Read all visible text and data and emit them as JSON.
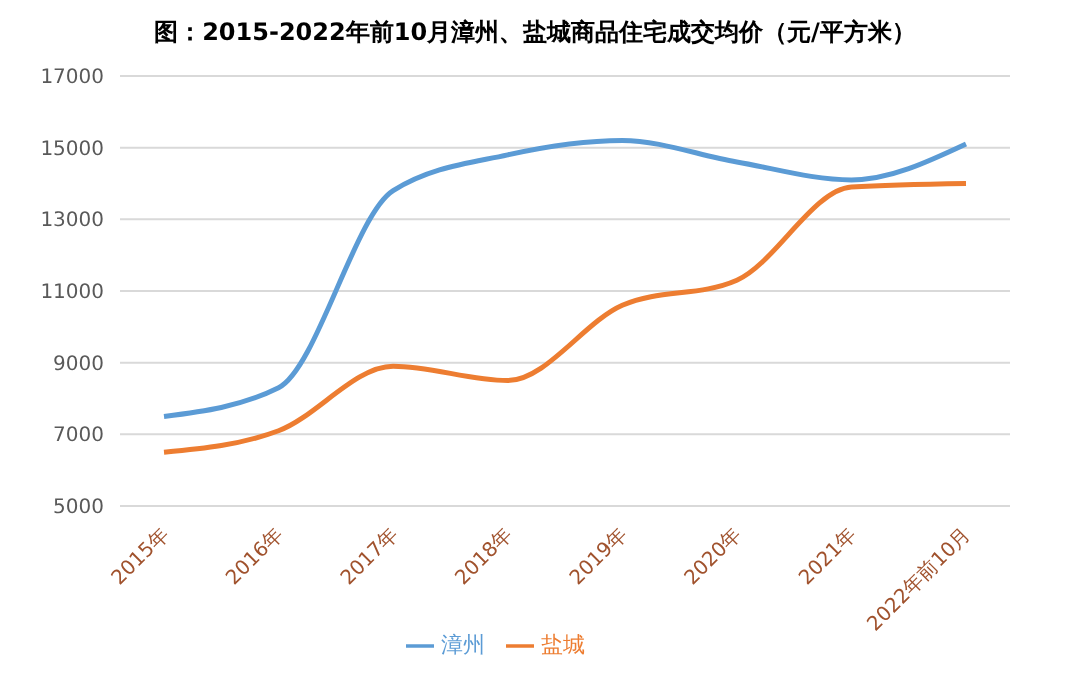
{
  "chart_data": {
    "type": "line",
    "title": "图：2015-2022年前10月漳州、盐城商品住宅成交均价（元/平方米）",
    "categories": [
      "2015年",
      "2016年",
      "2017年",
      "2018年",
      "2019年",
      "2020年",
      "2021年",
      "2022年前10月"
    ],
    "series": [
      {
        "name": "漳州",
        "color": "#5b9bd5",
        "values": [
          7500,
          8300,
          13800,
          14800,
          15200,
          14600,
          14100,
          15100
        ]
      },
      {
        "name": "盐城",
        "color": "#ed7d31",
        "values": [
          6500,
          7100,
          8900,
          8500,
          10600,
          11300,
          13900,
          14000
        ]
      }
    ],
    "ylim": [
      5000,
      17000
    ],
    "yticks": [
      5000,
      7000,
      9000,
      11000,
      13000,
      15000,
      17000
    ],
    "grid": "y",
    "legend": "bottom",
    "marker": "none",
    "line_style": "solid"
  }
}
